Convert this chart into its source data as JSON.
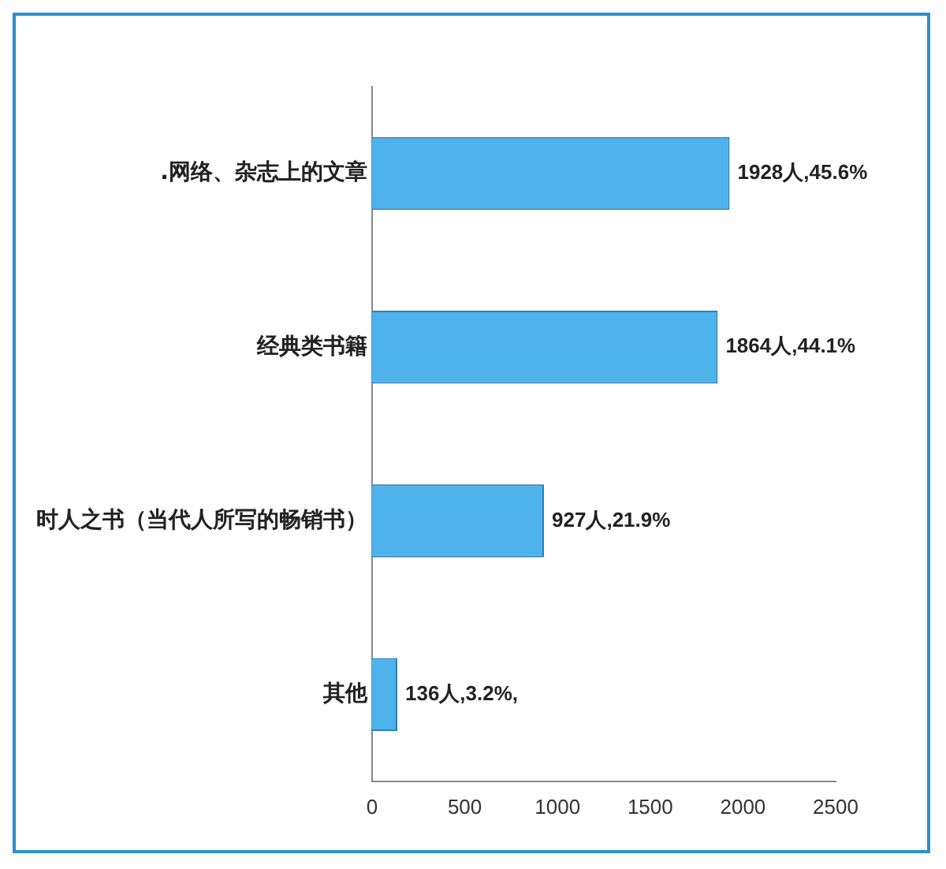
{
  "chart_data": {
    "type": "bar",
    "orientation": "horizontal",
    "categories": [
      ".网络、杂志上的文章",
      "经典类书籍",
      "时人之书（当代人所写的畅销书）",
      "其他"
    ],
    "values": [
      1928,
      1864,
      927,
      136
    ],
    "value_labels": [
      "1928人,45.6%",
      "1864人,44.1%",
      "927人,21.9%",
      "136人,3.2%,"
    ],
    "color": "#4db3ea",
    "xlim": [
      0,
      2500
    ],
    "xticks": [
      0,
      500,
      1000,
      1500,
      2000,
      2500
    ],
    "grid": false,
    "legend": false
  }
}
